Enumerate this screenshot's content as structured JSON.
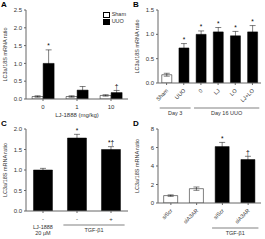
{
  "chart_data": [
    {
      "type": "bar",
      "title": "A",
      "categories": [
        "0",
        "1",
        "10"
      ],
      "xlabel": "LJ-1888 (mg/kg)",
      "ylabel": "LC3a/18S mRNA ratio",
      "series": [
        {
          "name": "Sham",
          "color": "white",
          "values": [
            0.07,
            0.07,
            0.1
          ],
          "errors": [
            0.02,
            0.02,
            0.02
          ]
        },
        {
          "name": "UUO",
          "color": "black",
          "values": [
            1.0,
            0.25,
            0.18
          ],
          "errors": [
            0.38,
            0.1,
            0.06
          ],
          "annotations": [
            "*",
            null,
            "†"
          ]
        }
      ],
      "ylim": [
        0,
        2.5
      ],
      "yticks": [
        {
          "value": 0.0,
          "label": "0.0"
        },
        {
          "value": 0.5,
          "label": "0.5"
        },
        {
          "value": 1.0,
          "label": "1.0"
        },
        {
          "value": 1.5,
          "label": "1.5"
        },
        {
          "value": 2.0,
          "label": "2.0"
        },
        {
          "value": 2.5,
          "label": "2.5"
        }
      ],
      "legend": "upper right",
      "grid": false
    },
    {
      "type": "bar",
      "title": "B",
      "categories": [
        "Sham",
        "UUO",
        "0",
        "LJ",
        "LO",
        "LJ+LO"
      ],
      "ylabel": "LC3a/18S mRNA ratio",
      "series": [
        {
          "colors": [
            "white",
            "black",
            "black",
            "black",
            "black",
            "black"
          ],
          "values": [
            0.17,
            0.72,
            1.0,
            1.05,
            0.97,
            1.05
          ],
          "errors": [
            0.03,
            0.09,
            0.07,
            0.09,
            0.09,
            0.13
          ],
          "annotations": [
            null,
            "*",
            "*",
            "*",
            "*",
            "*"
          ]
        }
      ],
      "category_groups": [
        {
          "label": "Day 3",
          "start": 0,
          "end": 1
        },
        {
          "label": "Day 16 UUO",
          "start": 2,
          "end": 5
        }
      ],
      "ylim": [
        0,
        1.5
      ],
      "yticks": [
        {
          "value": 0.0,
          "label": "0.0"
        },
        {
          "value": 0.5,
          "label": "0.5"
        },
        {
          "value": 1.0,
          "label": "1.0"
        },
        {
          "value": 1.5,
          "label": "1.5"
        }
      ],
      "grid": false
    },
    {
      "type": "bar",
      "title": "C",
      "categories": [
        "-",
        "-",
        "+"
      ],
      "xlabel": "LJ-1888\n20 μM",
      "ylabel": "LC3a/18S mRNA ratio",
      "series": [
        {
          "colors": [
            "black",
            "black",
            "black"
          ],
          "values": [
            1.0,
            1.78,
            1.5
          ],
          "errors": [
            0.04,
            0.09,
            0.07
          ],
          "annotations": [
            null,
            "*",
            "*†"
          ]
        }
      ],
      "category_groups": [
        {
          "label": "TGF-β1",
          "start": 1,
          "end": 2
        }
      ],
      "ylim": [
        0,
        2.0
      ],
      "yticks": [
        {
          "value": 0.0,
          "label": "0.0"
        },
        {
          "value": 0.5,
          "label": "0.5"
        },
        {
          "value": 1.0,
          "label": "1.0"
        },
        {
          "value": 1.5,
          "label": "1.5"
        },
        {
          "value": 2.0,
          "label": "2.0"
        }
      ],
      "grid": false
    },
    {
      "type": "bar",
      "title": "D",
      "categories": [
        "siScr",
        "siA3AR",
        "siScr",
        "siA3AR"
      ],
      "ylabel": "LC3a/18S mRNA ratio",
      "series": [
        {
          "colors": [
            "white",
            "white",
            "black",
            "black"
          ],
          "values": [
            0.8,
            1.55,
            6.1,
            4.7
          ],
          "errors": [
            0.08,
            0.18,
            0.45,
            0.35
          ],
          "annotations": [
            null,
            null,
            "*",
            "†"
          ]
        }
      ],
      "category_groups": [
        {
          "label": "TGF-β1",
          "start": 2,
          "end": 3
        }
      ],
      "ylim": [
        0,
        8
      ],
      "yticks": [
        0,
        2,
        4,
        6,
        8
      ],
      "grid": false
    }
  ]
}
